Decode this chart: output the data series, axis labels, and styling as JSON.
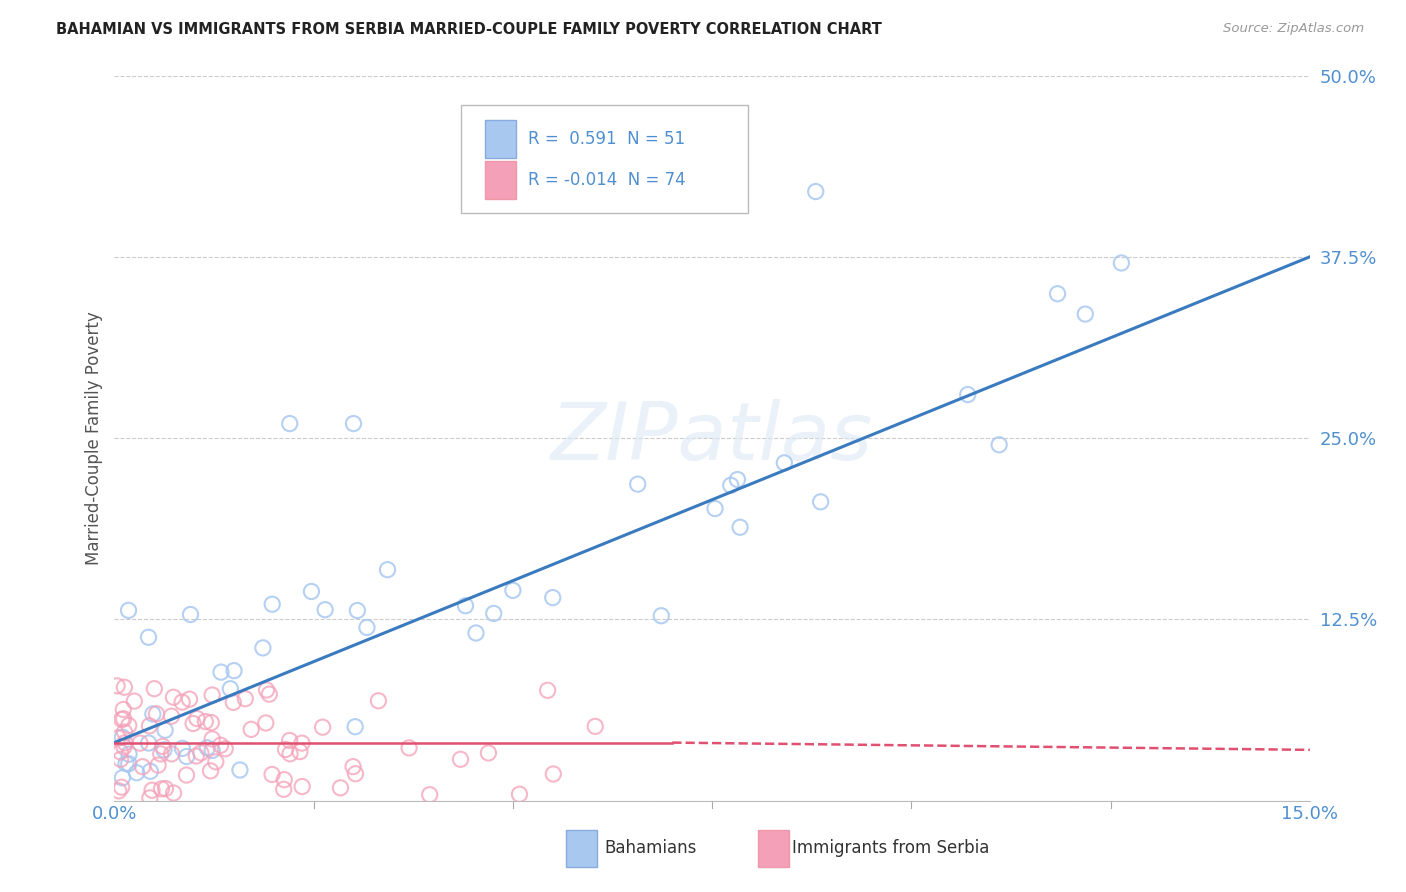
{
  "title": "BAHAMIAN VS IMMIGRANTS FROM SERBIA MARRIED-COUPLE FAMILY POVERTY CORRELATION CHART",
  "source": "Source: ZipAtlas.com",
  "ylabel": "Married-Couple Family Poverty",
  "watermark": "ZIPatlas",
  "xlim": [
    0.0,
    0.15
  ],
  "ylim": [
    0.0,
    0.5
  ],
  "ytick_vals": [
    0.0,
    0.125,
    0.25,
    0.375,
    0.5
  ],
  "ytick_labels": [
    "",
    "12.5%",
    "25.0%",
    "37.5%",
    "50.0%"
  ],
  "xtick_vals": [
    0.0,
    0.15
  ],
  "xtick_labels": [
    "0.0%",
    "15.0%"
  ],
  "minor_xtick_vals": [
    0.025,
    0.05,
    0.075,
    0.1,
    0.125
  ],
  "r_bahamian": "0.591",
  "n_bahamian": "51",
  "r_serbia": "-0.014",
  "n_serbia": "74",
  "color_bahamian": "#a8c8f0",
  "color_serbia": "#f4a0b8",
  "line_color_bahamian": "#3a7abf",
  "line_color_serbia": "#e05070",
  "tick_label_color": "#5090d0",
  "background_color": "#ffffff",
  "grid_color": "#cccccc",
  "bah_line": [
    0.0,
    0.04,
    0.15,
    0.375
  ],
  "serb_line_solid": [
    0.0,
    0.04,
    0.07,
    0.04
  ],
  "serb_line_dash": [
    0.07,
    0.04,
    0.15,
    0.035
  ]
}
